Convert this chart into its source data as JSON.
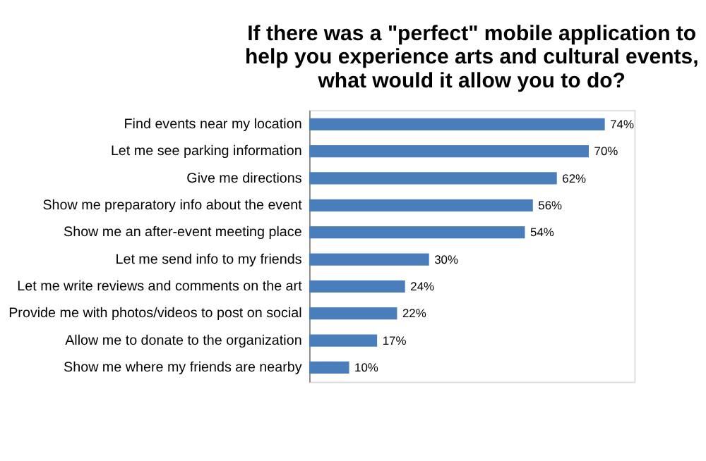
{
  "chart_data": {
    "type": "bar",
    "orientation": "horizontal",
    "title": "If there was a \"perfect\" mobile application to help you experience arts and cultural events, what would it allow you to do?",
    "categories": [
      "Find events near my location",
      "Let me see parking information",
      "Give me directions",
      "Show me preparatory info about the event",
      "Show me an after-event meeting place",
      "Let me send info to my friends",
      "Let me write reviews and comments on the art",
      "Provide me with photos/videos to post on social",
      "Allow me to donate to the organization",
      "Show me where my friends are nearby"
    ],
    "values": [
      74,
      70,
      62,
      56,
      54,
      30,
      24,
      22,
      17,
      10
    ],
    "value_labels": [
      "74%",
      "70%",
      "62%",
      "56%",
      "54%",
      "30%",
      "24%",
      "22%",
      "17%",
      "10%"
    ],
    "color": "#4a7ebb"
  }
}
